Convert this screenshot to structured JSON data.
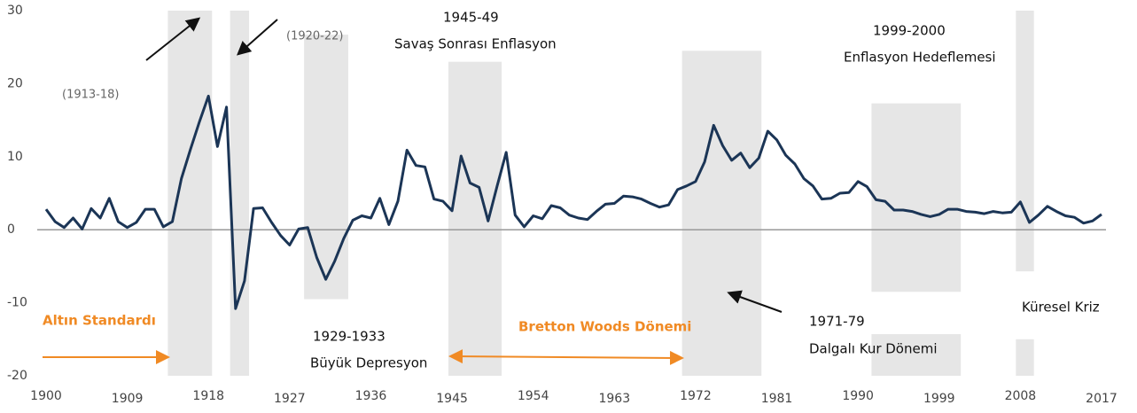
{
  "chart_data": {
    "type": "line",
    "x": [
      1900,
      1901,
      1902,
      1903,
      1904,
      1905,
      1906,
      1907,
      1908,
      1909,
      1910,
      1911,
      1912,
      1913,
      1914,
      1915,
      1916,
      1917,
      1918,
      1919,
      1920,
      1921,
      1922,
      1923,
      1924,
      1925,
      1926,
      1927,
      1928,
      1929,
      1930,
      1931,
      1932,
      1933,
      1934,
      1935,
      1936,
      1937,
      1938,
      1939,
      1940,
      1941,
      1942,
      1943,
      1944,
      1945,
      1946,
      1947,
      1948,
      1949,
      1950,
      1951,
      1952,
      1953,
      1954,
      1955,
      1956,
      1957,
      1958,
      1959,
      1960,
      1961,
      1962,
      1963,
      1964,
      1965,
      1966,
      1967,
      1968,
      1969,
      1970,
      1971,
      1972,
      1973,
      1974,
      1975,
      1976,
      1977,
      1978,
      1979,
      1980,
      1981,
      1982,
      1983,
      1984,
      1985,
      1986,
      1987,
      1988,
      1989,
      1990,
      1991,
      1992,
      1993,
      1994,
      1995,
      1996,
      1997,
      1998,
      1999,
      2000,
      2001,
      2002,
      2003,
      2004,
      2005,
      2006,
      2007,
      2008,
      2009,
      2010,
      2011,
      2012,
      2013,
      2014,
      2015,
      2016,
      2017
    ],
    "series": [
      {
        "color": "#1b3556",
        "values": [
          2.8,
          1.1,
          0.3,
          1.6,
          0.1,
          2.9,
          1.6,
          4.3,
          1.1,
          0.3,
          1.0,
          2.8,
          2.8,
          0.4,
          1.1,
          7.0,
          11.0,
          14.8,
          18.3,
          11.4,
          16.8,
          -10.8,
          -7.0,
          2.9,
          3.0,
          1.0,
          -0.8,
          -2.1,
          0.1,
          0.3,
          -3.8,
          -6.8,
          -4.3,
          -1.2,
          1.3,
          1.9,
          1.6,
          4.3,
          0.7,
          3.9,
          10.9,
          8.8,
          8.6,
          4.2,
          3.9,
          2.6,
          10.1,
          6.4,
          5.8,
          1.2,
          6.0,
          10.6,
          2.0,
          0.4,
          1.9,
          1.5,
          3.3,
          3.0,
          2.0,
          1.6,
          1.4,
          2.5,
          3.5,
          3.6,
          4.6,
          4.5,
          4.2,
          3.6,
          3.1,
          3.4,
          5.5,
          6.0,
          6.6,
          9.3,
          14.3,
          11.5,
          9.5,
          10.5,
          8.5,
          9.8,
          13.5,
          12.3,
          10.2,
          9.0,
          7.0,
          6.0,
          4.2,
          4.3,
          5.0,
          5.1,
          6.6,
          5.9,
          4.1,
          3.9,
          2.7,
          2.7,
          2.5,
          2.1,
          1.8,
          2.1,
          2.8,
          2.8,
          2.5,
          2.4,
          2.2,
          2.5,
          2.3,
          2.4,
          3.8,
          1.0,
          2.0,
          3.2,
          2.5,
          1.9,
          1.7,
          0.9,
          1.2,
          2.1
        ]
      }
    ],
    "xlim": [
      1900,
      2017
    ],
    "xticks": [
      1900,
      1909,
      1918,
      1927,
      1936,
      1945,
      1954,
      1963,
      1972,
      1981,
      1990,
      1999,
      2008,
      2017
    ],
    "ylim": [
      -20,
      30
    ],
    "yticks": [
      -20,
      -10,
      0,
      10,
      20,
      30
    ],
    "shade_color": "#e6e6e6",
    "shaded_periods": [
      {
        "x": [
          1913.5,
          1918.4
        ],
        "y": [
          -20,
          30
        ]
      },
      {
        "x": [
          1920.4,
          1922.5
        ],
        "y": [
          -20,
          30
        ]
      },
      {
        "x": [
          1928.6,
          1933.5
        ],
        "y": [
          -9.5,
          26.7
        ]
      },
      {
        "x": [
          1944.6,
          1950.5
        ],
        "y": [
          -20,
          23
        ]
      },
      {
        "x": [
          1970.5,
          1979.3
        ],
        "y": [
          -20,
          24.5
        ]
      },
      {
        "x": [
          1991.5,
          2001.4
        ],
        "y": [
          -8.5,
          17.3
        ]
      },
      {
        "x": [
          1991.5,
          2001.4
        ],
        "y": [
          -20,
          -14.3
        ]
      },
      {
        "x": [
          2007.5,
          2009.5
        ],
        "y": [
          -5.7,
          30
        ]
      },
      {
        "x": [
          2007.5,
          2009.5
        ],
        "y": [
          -20,
          -15
        ]
      }
    ],
    "annotations": [
      {
        "text": "(1913-18)",
        "color": "#666666"
      },
      {
        "text": "(1920-22)",
        "color": "#666666"
      },
      {
        "text": "1945-49",
        "color": "#111111"
      },
      {
        "text": "Savaş Sonrası Enflasyon",
        "color": "#111111"
      },
      {
        "text": "1999-2000",
        "color": "#111111"
      },
      {
        "text": "Enflasyon Hedeflemesi",
        "color": "#111111"
      },
      {
        "text": "Küresel Kriz",
        "color": "#111111"
      },
      {
        "text": "1971-79",
        "color": "#111111"
      },
      {
        "text": "Dalgalı Kur Dönemi",
        "color": "#111111"
      },
      {
        "text": "1929-1933",
        "color": "#111111"
      },
      {
        "text": "Büyük Depresyon",
        "color": "#111111"
      },
      {
        "text": "Altın Standardı",
        "color": "#f08a24"
      },
      {
        "text": "Bretton Woods Dönemi",
        "color": "#f08a24"
      }
    ]
  }
}
